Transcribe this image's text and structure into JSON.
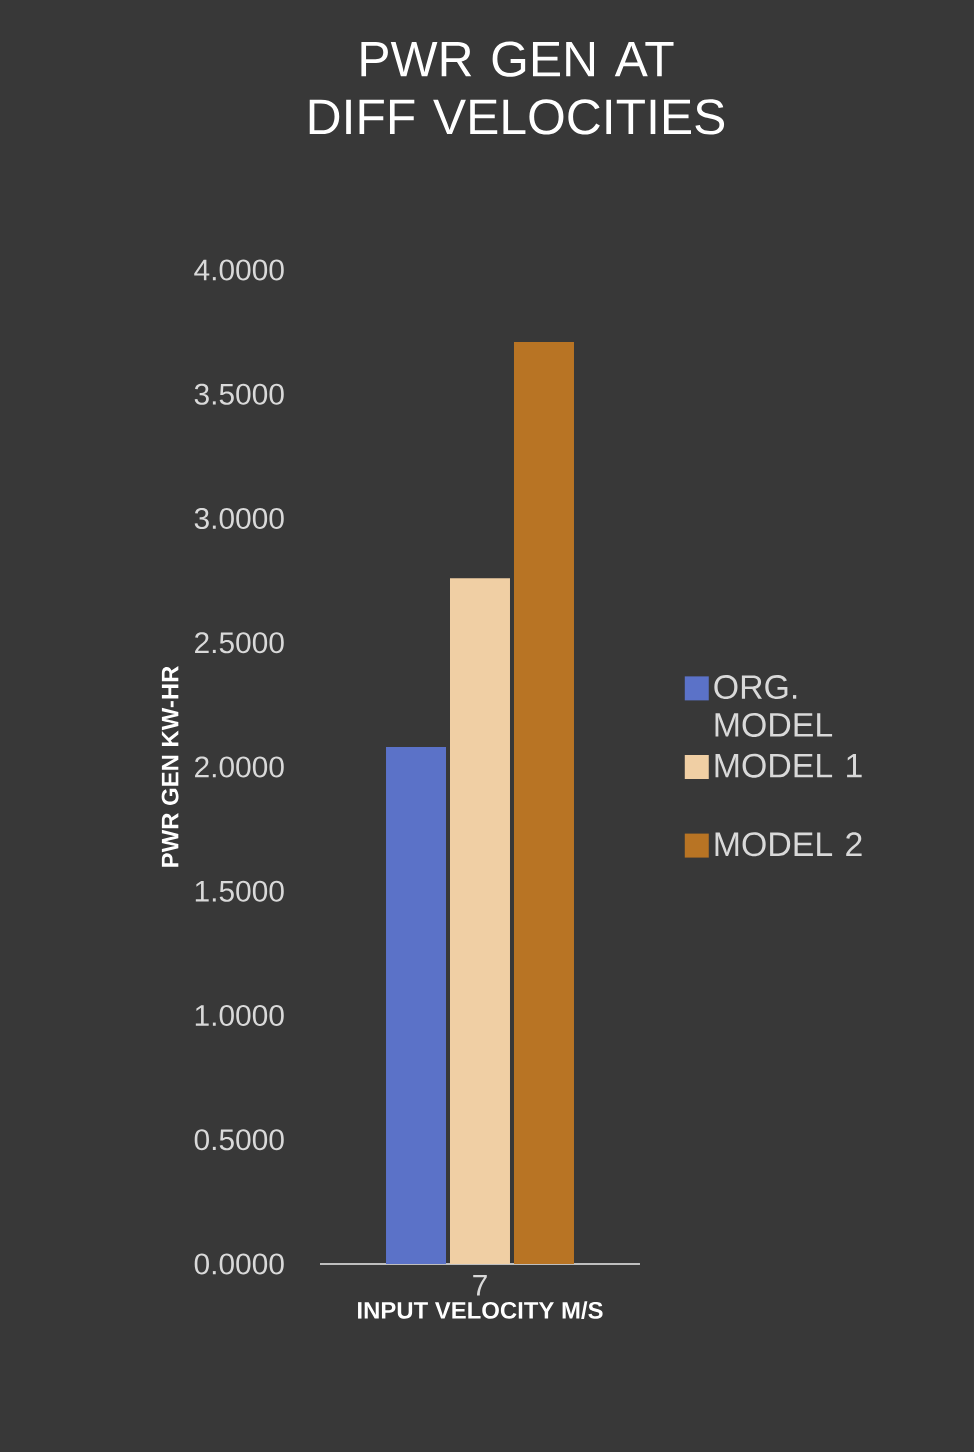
{
  "chart_data": {
    "type": "bar",
    "title": "PWR GEN AT DIFF VELOCITIES",
    "xlabel": "INPUT VELOCITY  M/S",
    "ylabel": "PWR GEN KW-HR",
    "categories": [
      "7"
    ],
    "series": [
      {
        "name": "ORG. MODEL",
        "color": "#5b72c8",
        "values": [
          2.08
        ]
      },
      {
        "name": "MODEL 1",
        "color": "#f0cfa4",
        "values": [
          2.76
        ]
      },
      {
        "name": "MODEL 2",
        "color": "#b87424",
        "values": [
          3.71
        ]
      }
    ],
    "ylim": [
      0,
      4
    ],
    "yticks": [
      {
        "value": 0,
        "label": "0.0000"
      },
      {
        "value": 0.5,
        "label": "0.5000"
      },
      {
        "value": 1,
        "label": "1.0000"
      },
      {
        "value": 1.5,
        "label": "1.5000"
      },
      {
        "value": 2,
        "label": "2.0000"
      },
      {
        "value": 2.5,
        "label": "2.5000"
      },
      {
        "value": 3,
        "label": "3.0000"
      },
      {
        "value": 3.5,
        "label": "3.5000"
      },
      {
        "value": 4,
        "label": "4.0000"
      }
    ],
    "legend": "right"
  }
}
